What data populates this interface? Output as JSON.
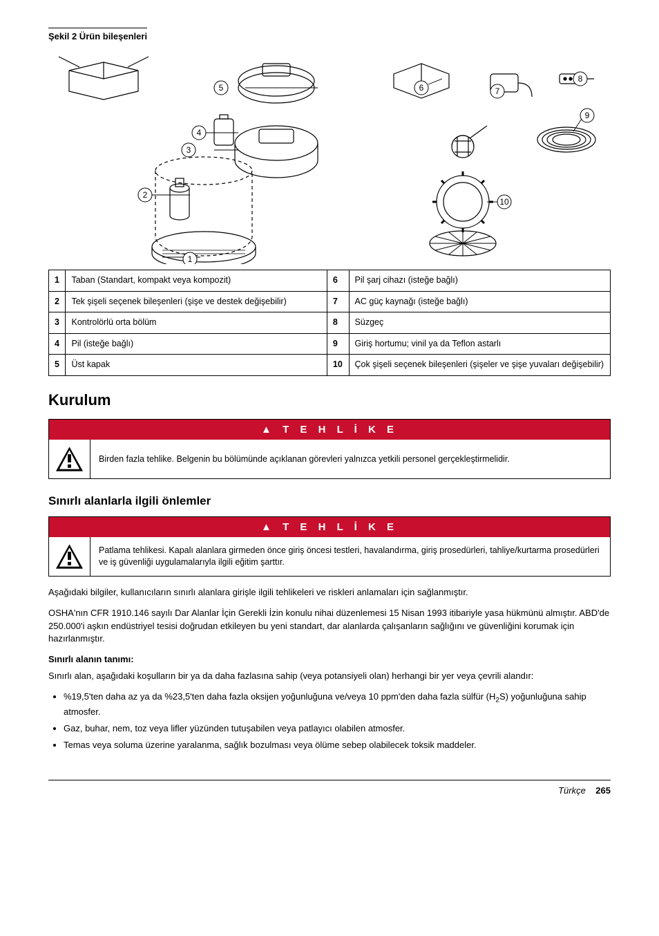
{
  "figure": {
    "caption": "Şekil 2  Ürün bileşenleri",
    "callouts": [
      "1",
      "2",
      "3",
      "4",
      "5",
      "6",
      "7",
      "8",
      "9",
      "10"
    ]
  },
  "parts": {
    "rows": [
      {
        "ln": "1",
        "ld": "Taban (Standart, kompakt veya kompozit)",
        "rn": "6",
        "rd": "Pil şarj cihazı (isteğe bağlı)"
      },
      {
        "ln": "2",
        "ld": "Tek şişeli seçenek bileşenleri (şişe ve destek değişebilir)",
        "rn": "7",
        "rd": "AC güç kaynağı (isteğe bağlı)"
      },
      {
        "ln": "3",
        "ld": "Kontrolörlü orta bölüm",
        "rn": "8",
        "rd": "Süzgeç"
      },
      {
        "ln": "4",
        "ld": "Pil (isteğe bağlı)",
        "rn": "9",
        "rd": "Giriş hortumu; vinil ya da Teflon astarlı"
      },
      {
        "ln": "5",
        "ld": "Üst kapak",
        "rn": "10",
        "rd": "Çok şişeli seçenek bileşenleri (şişeler ve şişe yuvaları değişebilir)"
      }
    ]
  },
  "section1": {
    "title": "Kurulum"
  },
  "danger1": {
    "header": "T E H L İ K E",
    "text": "Birden fazla tehlike. Belgenin bu bölümünde açıklanan görevleri yalnızca yetkili personel gerçekleştirmelidir."
  },
  "subsection1": {
    "title": "Sınırlı alanlarla ilgili önlemler"
  },
  "danger2": {
    "header": "T E H L İ K E",
    "text": "Patlama tehlikesi. Kapalı alanlara girmeden önce giriş öncesi testleri, havalandırma, giriş prosedürleri, tahliye/kurtarma prosedürleri ve iş güvenliği uygulamalarıyla ilgili eğitim şarttır."
  },
  "para1": "Aşağıdaki bilgiler, kullanıcıların sınırlı alanlara girişle ilgili tehlikeleri ve riskleri anlamaları için sağlanmıştır.",
  "para2": "OSHA'nın CFR 1910.146 sayılı Dar Alanlar İçin Gerekli İzin konulu nihai düzenlemesi 15 Nisan 1993 itibariyle yasa hükmünü almıştır. ABD'de 250.000'i aşkın endüstriyel tesisi doğrudan etkileyen bu yeni standart, dar alanlarda çalışanların sağlığını ve güvenliğini korumak için hazırlanmıştır.",
  "defTitle": "Sınırlı alanın tanımı:",
  "para3": "Sınırlı alan, aşağıdaki koşulların bir ya da daha fazlasına sahip (veya potansiyeli olan) herhangi bir yer veya çevrili alandır:",
  "bullets": [
    "%19,5'ten daha az ya da %23,5'ten daha fazla oksijen yoğunluğuna ve/veya 10 ppm'den daha fazla sülfür (H₂S) yoğunluğuna sahip atmosfer.",
    "Gaz, buhar, nem, toz veya lifler yüzünden tutuşabilen veya patlayıcı olabilen atmosfer.",
    "Temas veya soluma üzerine yaralanma, sağlık bozulması veya ölüme sebep olabilecek toksik maddeler."
  ],
  "footer": {
    "lang": "Türkçe",
    "page": "265"
  },
  "colors": {
    "danger_bg": "#c8102e",
    "danger_fg": "#ffffff",
    "border": "#000000"
  }
}
